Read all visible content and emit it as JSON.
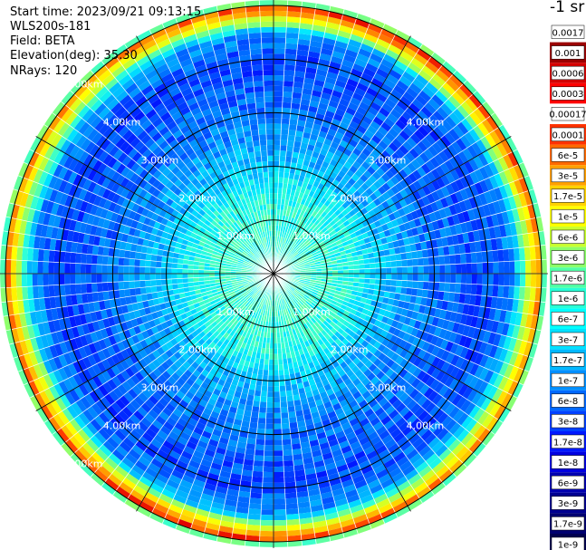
{
  "header": {
    "start_time": "Start time: 2023/09/21 09:13:15",
    "device": "WLS200s-181",
    "field": "Field: BETA",
    "elevation": "Elevation(deg): 35.30",
    "nrays": "NRays: 120"
  },
  "colorbar": {
    "unit_label": "-1 sr",
    "ticks": [
      "0.0017",
      "0.001",
      "0.0006",
      "0.0003",
      "0.00017",
      "0.0001",
      "6e-5",
      "3e-5",
      "1.7e-5",
      "1e-5",
      "6e-6",
      "3e-6",
      "1.7e-6",
      "1e-6",
      "6e-7",
      "3e-7",
      "1.7e-7",
      "1e-7",
      "6e-8",
      "3e-8",
      "1.7e-8",
      "1e-8",
      "6e-9",
      "3e-9",
      "1.7e-9",
      "1e-9"
    ],
    "colors": [
      "#ffffff",
      "#9b0000",
      "#d40000",
      "#ff0000",
      "#ffffff",
      "#ff3200",
      "#ff6a00",
      "#ffa000",
      "#ffd200",
      "#ffff00",
      "#c8ff30",
      "#8cff6a",
      "#50ffa6",
      "#28ffd6",
      "#00ffff",
      "#00e0ff",
      "#00b8ff",
      "#0090ff",
      "#0068ff",
      "#0040ff",
      "#0018ff",
      "#0000e0",
      "#0000b0",
      "#000090",
      "#000070",
      "#000050"
    ]
  },
  "chart_data": {
    "type": "heatmap",
    "projection": "polar PPI scan",
    "variable": "BETA",
    "n_rays": 120,
    "range_ring_labels": [
      "1.00km",
      "2.00km",
      "3.00km",
      "4.00km",
      "5.00km"
    ],
    "range_rings_km": [
      1,
      2,
      3,
      4,
      5
    ],
    "max_range_km": 5.1,
    "radial_profile_log10_beta": [
      {
        "range_km": 0.0,
        "value": -6.7
      },
      {
        "range_km": 1.0,
        "value": -6.7
      },
      {
        "range_km": 1.5,
        "value": -6.8
      },
      {
        "range_km": 2.0,
        "value": -7.2
      },
      {
        "range_km": 3.0,
        "value": -7.6
      },
      {
        "range_km": 4.0,
        "value": -7.8
      },
      {
        "range_km": 4.5,
        "value": -7.4
      },
      {
        "range_km": 4.8,
        "value": -5.5
      },
      {
        "range_km": 4.95,
        "value": -4.8
      },
      {
        "range_km": 5.1,
        "value": -7.2
      }
    ],
    "colorbar_range": [
      "1e-9",
      "0.0017"
    ]
  }
}
